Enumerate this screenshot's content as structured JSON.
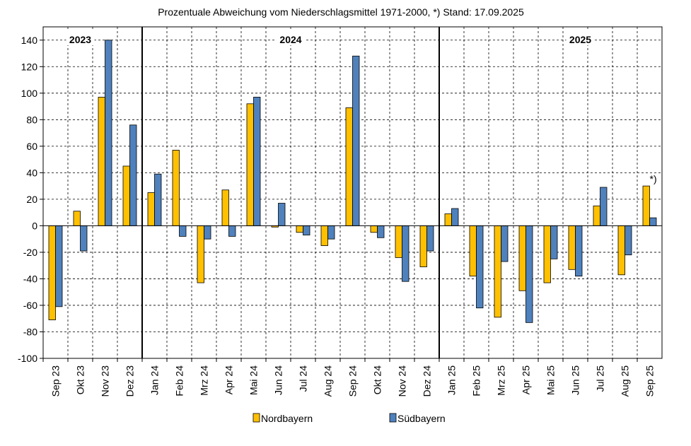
{
  "chart_data": {
    "type": "bar",
    "title": "Prozentuale Abweichung vom Niederschlagsmittel 1971-2000,  *) Stand: 17.09.2025",
    "xlabel": "",
    "ylabel": "",
    "ylim": [
      -100,
      150
    ],
    "yticks": [
      140,
      120,
      100,
      80,
      60,
      40,
      20,
      0,
      -20,
      -40,
      -60,
      -80,
      -100
    ],
    "grid": true,
    "legend_position": "bottom",
    "categories": [
      "Sep 23",
      "Okt 23",
      "Nov 23",
      "Dez 23",
      "Jan 24",
      "Feb 24",
      "Mrz 24",
      "Apr 24",
      "Mai 24",
      "Jun 24",
      "Jul 24",
      "Aug 24",
      "Sep 24",
      "Okt 24",
      "Nov 24",
      "Dez 24",
      "Jan 25",
      "Feb 25",
      "Mrz 25",
      "Apr 25",
      "Mai 25",
      "Jun 25",
      "Jul 25",
      "Aug 25",
      "Sep 25"
    ],
    "series": [
      {
        "name": "Nordbayern",
        "color": "#FFC000",
        "values": [
          -71,
          11,
          97,
          45,
          25,
          57,
          -43,
          27,
          92,
          -1,
          -5,
          -15,
          89,
          -5,
          -24,
          -31,
          9,
          -38,
          -69,
          -49,
          -43,
          -33,
          15,
          -37,
          30
        ]
      },
      {
        "name": "Südbayern",
        "color": "#4F81BD",
        "values": [
          -61,
          -19,
          140,
          76,
          39,
          -8,
          -10,
          -8,
          97,
          17,
          -7,
          -10,
          128,
          -9,
          -42,
          -19,
          13,
          -62,
          -27,
          -73,
          -25,
          -38,
          29,
          -22,
          6
        ]
      }
    ],
    "year_labels": [
      {
        "label": "2023",
        "start_index": 0,
        "end_index": 3
      },
      {
        "label": "2024",
        "start_index": 4,
        "end_index": 15
      },
      {
        "label": "2025",
        "start_index": 16,
        "end_index": 24
      }
    ],
    "annotations": [
      {
        "text": "*)",
        "category_index": 24
      }
    ]
  }
}
